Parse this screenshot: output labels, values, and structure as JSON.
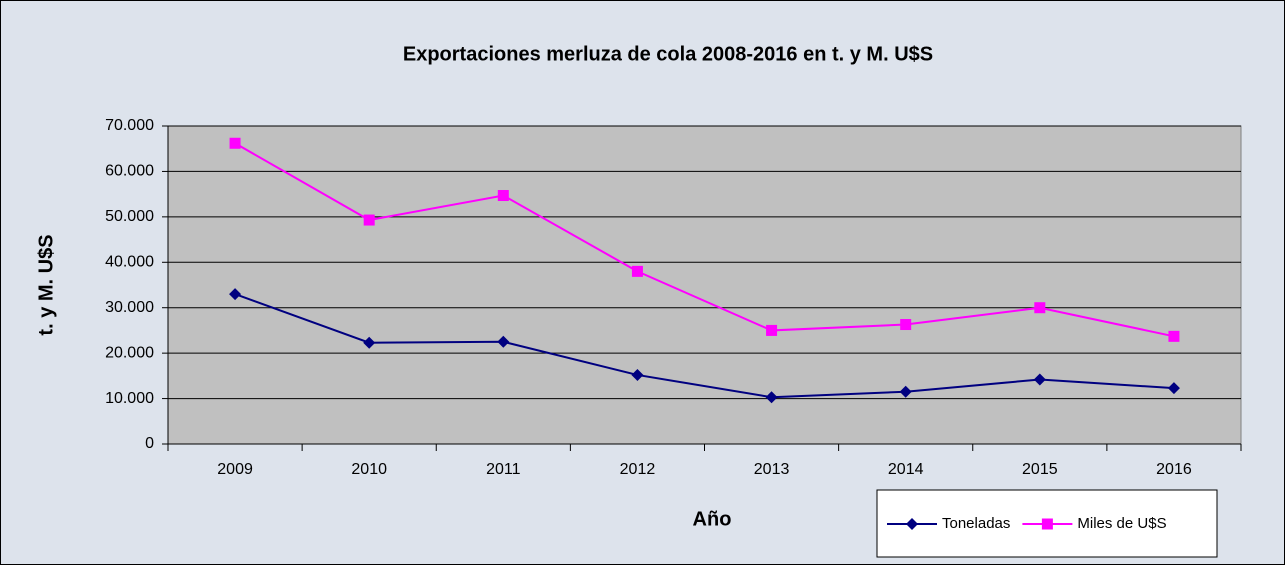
{
  "chart_data": {
    "type": "line",
    "title": "Exportaciones merluza de cola 2008-2016 en t. y M. U$S",
    "x_label": "Año",
    "y_label": "t. y M. U$S",
    "categories": [
      "2009",
      "2010",
      "2011",
      "2012",
      "2013",
      "2014",
      "2015",
      "2016"
    ],
    "series": [
      {
        "name": "Toneladas",
        "color": "#000080",
        "marker": "diamond",
        "values": [
          33000,
          22300,
          22500,
          15200,
          10300,
          11500,
          14200,
          12300
        ]
      },
      {
        "name": "Miles de U$S",
        "color": "#ff00ff",
        "marker": "square",
        "values": [
          66200,
          49300,
          54700,
          38000,
          25000,
          26300,
          30000,
          23700
        ]
      }
    ],
    "ylim": [
      0,
      70000
    ],
    "yticks": [
      0,
      {
        "value": 10000,
        "label": "10.000"
      },
      {
        "value": 20000,
        "label": "20.000"
      },
      {
        "value": 30000,
        "label": "30.000"
      },
      {
        "value": 40000,
        "label": "40.000"
      },
      {
        "value": 50000,
        "label": "50.000"
      },
      {
        "value": 60000,
        "label": "60.000"
      },
      {
        "value": 70000,
        "label": "70.000"
      }
    ],
    "grid": true,
    "legend": "bottom right"
  }
}
